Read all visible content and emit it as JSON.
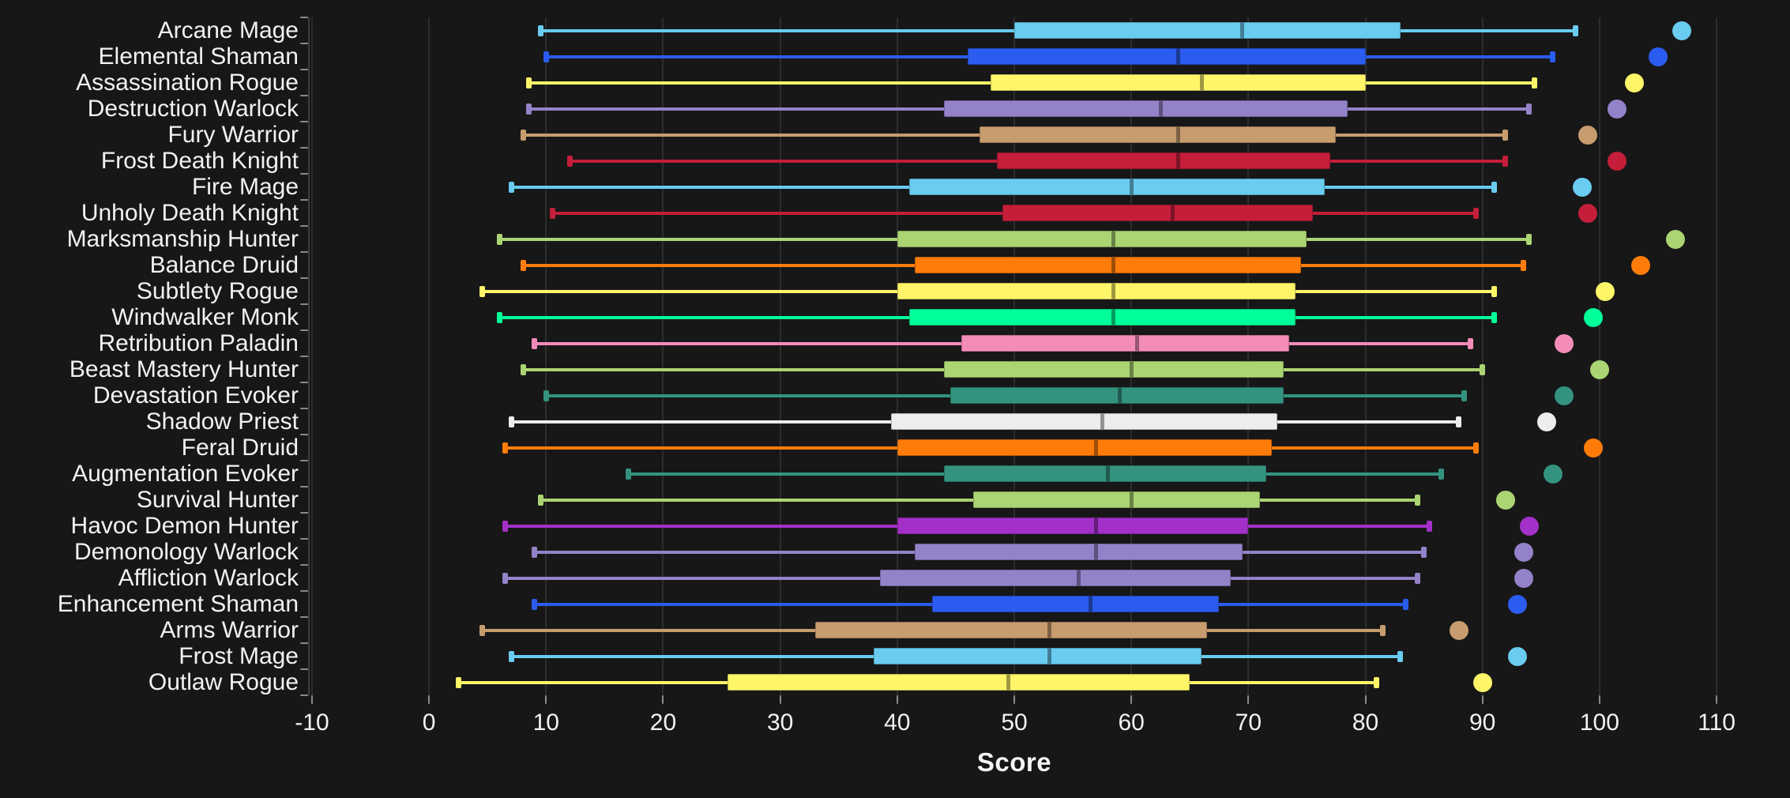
{
  "chart_data": {
    "type": "boxplot",
    "orientation": "horizontal",
    "title": "",
    "xlabel": "Score",
    "ylabel": "",
    "xlim": [
      -10.2,
      110.2
    ],
    "grid": "vertical gridlines every 10 units",
    "legend": "none",
    "x_ticks": [
      {
        "v": -10,
        "label": "-10"
      },
      {
        "v": 0,
        "label": "0"
      },
      {
        "v": 10,
        "label": "10"
      },
      {
        "v": 20,
        "label": "20"
      },
      {
        "v": 30,
        "label": "30"
      },
      {
        "v": 40,
        "label": "40"
      },
      {
        "v": 50,
        "label": "50"
      },
      {
        "v": 60,
        "label": "60"
      },
      {
        "v": 70,
        "label": "70"
      },
      {
        "v": 80,
        "label": "80"
      },
      {
        "v": 90,
        "label": "90"
      },
      {
        "v": 100,
        "label": "100"
      },
      {
        "v": 110,
        "label": "110"
      }
    ],
    "rows": [
      {
        "label": "Arcane Mage",
        "color": "#69CCF0",
        "whisker_low": 9.5,
        "q1": 50,
        "median": 69.5,
        "q3": 83,
        "whisker_high": 98,
        "point": 107
      },
      {
        "label": "Elemental Shaman",
        "color": "#2B5CF0",
        "whisker_low": 10,
        "q1": 46,
        "median": 64,
        "q3": 80,
        "whisker_high": 96,
        "point": 105
      },
      {
        "label": "Assassination Rogue",
        "color": "#FFF569",
        "whisker_low": 8.5,
        "q1": 48,
        "median": 66,
        "q3": 80,
        "whisker_high": 94.5,
        "point": 103
      },
      {
        "label": "Destruction Warlock",
        "color": "#9482C9",
        "whisker_low": 8.5,
        "q1": 44,
        "median": 62.5,
        "q3": 78.5,
        "whisker_high": 94,
        "point": 101.5
      },
      {
        "label": "Fury Warrior",
        "color": "#C79C6E",
        "whisker_low": 8,
        "q1": 47,
        "median": 64,
        "q3": 77.5,
        "whisker_high": 92,
        "point": 99
      },
      {
        "label": "Frost Death Knight",
        "color": "#C41E3A",
        "whisker_low": 12,
        "q1": 48.5,
        "median": 64,
        "q3": 77,
        "whisker_high": 92,
        "point": 101.5
      },
      {
        "label": "Fire Mage",
        "color": "#69CCF0",
        "whisker_low": 7,
        "q1": 41,
        "median": 60,
        "q3": 76.5,
        "whisker_high": 91,
        "point": 98.5
      },
      {
        "label": "Unholy Death Knight",
        "color": "#C41E3A",
        "whisker_low": 10.5,
        "q1": 49,
        "median": 63.5,
        "q3": 75.5,
        "whisker_high": 89.5,
        "point": 99
      },
      {
        "label": "Marksmanship Hunter",
        "color": "#ABD473",
        "whisker_low": 6,
        "q1": 40,
        "median": 58.5,
        "q3": 75,
        "whisker_high": 94,
        "point": 106.5
      },
      {
        "label": "Balance Druid",
        "color": "#FF7C0A",
        "whisker_low": 8,
        "q1": 41.5,
        "median": 58.5,
        "q3": 74.5,
        "whisker_high": 93.5,
        "point": 103.5
      },
      {
        "label": "Subtlety Rogue",
        "color": "#FFF569",
        "whisker_low": 4.5,
        "q1": 40,
        "median": 58.5,
        "q3": 74,
        "whisker_high": 91,
        "point": 100.5
      },
      {
        "label": "Windwalker Monk",
        "color": "#00FF98",
        "whisker_low": 6,
        "q1": 41,
        "median": 58.5,
        "q3": 74,
        "whisker_high": 91,
        "point": 99.5
      },
      {
        "label": "Retribution Paladin",
        "color": "#F48CBA",
        "whisker_low": 9,
        "q1": 45.5,
        "median": 60.5,
        "q3": 73.5,
        "whisker_high": 89,
        "point": 97
      },
      {
        "label": "Beast Mastery Hunter",
        "color": "#ABD473",
        "whisker_low": 8,
        "q1": 44,
        "median": 60,
        "q3": 73,
        "whisker_high": 90,
        "point": 100
      },
      {
        "label": "Devastation Evoker",
        "color": "#33937F",
        "whisker_low": 10,
        "q1": 44.5,
        "median": 59,
        "q3": 73,
        "whisker_high": 88.5,
        "point": 97
      },
      {
        "label": "Shadow Priest",
        "color": "#EDEDED",
        "whisker_low": 7,
        "q1": 39.5,
        "median": 57.5,
        "q3": 72.5,
        "whisker_high": 88,
        "point": 95.5
      },
      {
        "label": "Feral Druid",
        "color": "#FF7C0A",
        "whisker_low": 6.5,
        "q1": 40,
        "median": 57,
        "q3": 72,
        "whisker_high": 89.5,
        "point": 99.5
      },
      {
        "label": "Augmentation Evoker",
        "color": "#33937F",
        "whisker_low": 17,
        "q1": 44,
        "median": 58,
        "q3": 71.5,
        "whisker_high": 86.5,
        "point": 96
      },
      {
        "label": "Survival Hunter",
        "color": "#ABD473",
        "whisker_low": 9.5,
        "q1": 46.5,
        "median": 60,
        "q3": 71,
        "whisker_high": 84.5,
        "point": 92
      },
      {
        "label": "Havoc Demon Hunter",
        "color": "#A330C9",
        "whisker_low": 6.5,
        "q1": 40,
        "median": 57,
        "q3": 70,
        "whisker_high": 85.5,
        "point": 94
      },
      {
        "label": "Demonology Warlock",
        "color": "#9482C9",
        "whisker_low": 9,
        "q1": 41.5,
        "median": 57,
        "q3": 69.5,
        "whisker_high": 85,
        "point": 93.5
      },
      {
        "label": "Affliction Warlock",
        "color": "#9482C9",
        "whisker_low": 6.5,
        "q1": 38.5,
        "median": 55.5,
        "q3": 68.5,
        "whisker_high": 84.5,
        "point": 93.5
      },
      {
        "label": "Enhancement Shaman",
        "color": "#2B5CF0",
        "whisker_low": 9,
        "q1": 43,
        "median": 56.5,
        "q3": 67.5,
        "whisker_high": 83.5,
        "point": 93
      },
      {
        "label": "Arms Warrior",
        "color": "#C79C6E",
        "whisker_low": 4.5,
        "q1": 33,
        "median": 53,
        "q3": 66.5,
        "whisker_high": 81.5,
        "point": 88
      },
      {
        "label": "Frost Mage",
        "color": "#69CCF0",
        "whisker_low": 7,
        "q1": 38,
        "median": 53,
        "q3": 66,
        "whisker_high": 83,
        "point": 93
      },
      {
        "label": "Outlaw Rogue",
        "color": "#FFF569",
        "whisker_low": 2.5,
        "q1": 25.5,
        "median": 49.5,
        "q3": 65,
        "whisker_high": 81,
        "point": 90
      }
    ]
  },
  "colors": {
    "background": "#171717",
    "gridline": "#2d2d2d",
    "axis_line": "#3d3d3d",
    "tick_mark": "#8a8a8a",
    "text": "#f2f2f2"
  }
}
